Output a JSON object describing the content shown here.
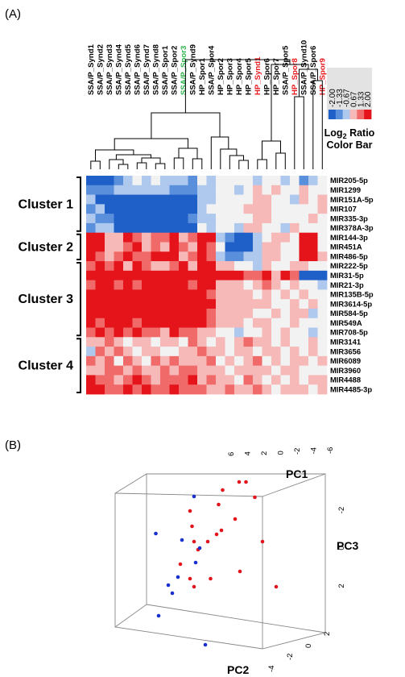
{
  "panels": {
    "a_label": "(A)",
    "b_label": "(B)"
  },
  "chart_data": [
    {
      "type": "heatmap",
      "columns": [
        {
          "name": "SSA/P_Synd1",
          "color": "#000000"
        },
        {
          "name": "SSA/P_Synd2",
          "color": "#000000"
        },
        {
          "name": "SSA/P_Synd3",
          "color": "#000000"
        },
        {
          "name": "SSA/P_Synd4",
          "color": "#000000"
        },
        {
          "name": "SSA/P_Synd5",
          "color": "#000000"
        },
        {
          "name": "SSA/P_Synd6",
          "color": "#000000"
        },
        {
          "name": "SSA/P_Synd7",
          "color": "#000000"
        },
        {
          "name": "SSA/P_Synd8",
          "color": "#000000"
        },
        {
          "name": "SSA/P_Spor1",
          "color": "#000000"
        },
        {
          "name": "SSA/P_Spor2",
          "color": "#000000"
        },
        {
          "name": "SSA/P_Spor3",
          "color": "#2db34a"
        },
        {
          "name": "SSA/P_Synd9",
          "color": "#000000"
        },
        {
          "name": "HP_Spor1",
          "color": "#000000"
        },
        {
          "name": "SSA/P_Spor4",
          "color": "#000000"
        },
        {
          "name": "HP_Spor2",
          "color": "#000000"
        },
        {
          "name": "HP_Spor3",
          "color": "#000000"
        },
        {
          "name": "HP_Spor4",
          "color": "#000000"
        },
        {
          "name": "HP_Spor5",
          "color": "#000000"
        },
        {
          "name": "HP_Synd1",
          "color": "#e8181c"
        },
        {
          "name": "HP_Spor6",
          "color": "#000000"
        },
        {
          "name": "HP_Spor7",
          "color": "#000000"
        },
        {
          "name": "SSA/P_Spor5",
          "color": "#000000"
        },
        {
          "name": "HP_Spor8",
          "color": "#e8181c"
        },
        {
          "name": "SSA/P_Synd10",
          "color": "#000000"
        },
        {
          "name": "SSA/P_Spor6",
          "color": "#000000"
        },
        {
          "name": "HP_Spor9",
          "color": "#e8181c"
        }
      ],
      "rows": [
        "MIR205-5p",
        "MIR1299",
        "MIR151A-5p",
        "MIR107",
        "MIR335-3p",
        "MIR378A-3p",
        "MIR144-3p",
        "MIR451A",
        "MIR486-5p",
        "MIR222-5p",
        "MIR31-5p",
        "MIR21-3p",
        "MIR135B-5p",
        "MIR3614-5p",
        "MIR584-5p",
        "MIR549A",
        "MIR708-5p",
        "MIR3141",
        "MIR3656",
        "MIR6089",
        "MIR3960",
        "MIR4488",
        "MIR4485-3p"
      ],
      "clusters": [
        {
          "label": "Cluster 1",
          "row_start": 0,
          "row_end": 5
        },
        {
          "label": "Cluster 2",
          "row_start": 6,
          "row_end": 8
        },
        {
          "label": "Cluster 3",
          "row_start": 9,
          "row_end": 16
        },
        {
          "label": "Cluster 4",
          "row_start": 17,
          "row_end": 22
        }
      ],
      "values": [
        [
          -2,
          -2,
          -2,
          -1.33,
          -0.67,
          0,
          -0.67,
          0,
          -0.67,
          -0.67,
          -0.67,
          -1.33,
          0,
          -0.67,
          0,
          0,
          0,
          0,
          -0.67,
          0,
          0,
          -0.67,
          0,
          -1.33,
          -0.67,
          0
        ],
        [
          -1.33,
          -1.33,
          -1.33,
          -0.67,
          -0.67,
          -0.67,
          -0.67,
          -0.67,
          -0.67,
          -1.33,
          -1.33,
          -1.33,
          -0.67,
          -0.67,
          0,
          0,
          -0.67,
          0,
          0.67,
          0,
          0.67,
          0,
          0,
          0.67,
          0,
          0
        ],
        [
          -0.67,
          -2,
          -2,
          -2,
          -2,
          -2,
          -2,
          -2,
          -2,
          -2,
          -2,
          -2,
          -0.67,
          -0.67,
          0,
          0,
          0,
          0,
          0.67,
          0.67,
          0,
          0,
          -0.67,
          0.67,
          0,
          0.67
        ],
        [
          -1.33,
          -0.67,
          -2,
          -2,
          -2,
          -2,
          -2,
          -2,
          -2,
          -2,
          -2,
          -2,
          -0.67,
          0,
          0,
          0,
          0,
          0.67,
          0.67,
          0.67,
          0,
          0,
          0,
          0,
          0,
          0.67
        ],
        [
          -0.67,
          -1.33,
          -1.33,
          -2,
          -2,
          -2,
          -2,
          -2,
          -2,
          -2,
          -2,
          -1.33,
          -0.67,
          -0.67,
          0,
          0,
          0,
          0,
          0.67,
          0.67,
          0,
          0,
          0,
          0,
          0.67,
          0
        ],
        [
          -1.33,
          -0.67,
          -0.67,
          -2,
          -2,
          -2,
          -2,
          -2,
          -2,
          -2,
          -2,
          -2,
          0,
          -0.67,
          0,
          0,
          -0.67,
          0.67,
          0.67,
          0,
          0,
          -0.67,
          0.67,
          0,
          0,
          0
        ],
        [
          2,
          2,
          0.67,
          0.67,
          2,
          1.33,
          0.67,
          1.33,
          1.33,
          2,
          0.67,
          1.33,
          2,
          2,
          -0.67,
          -1.33,
          -2,
          -2,
          -0.67,
          0,
          0.67,
          0.67,
          0,
          2,
          2,
          0
        ],
        [
          2,
          2,
          0.67,
          0.67,
          1.33,
          2,
          0.67,
          1.33,
          0.67,
          2,
          1.33,
          0.67,
          2,
          1.33,
          0,
          -2,
          -2,
          -2,
          -0.67,
          0.67,
          0.67,
          0,
          0,
          2,
          2,
          0
        ],
        [
          2,
          1.33,
          0.67,
          1.33,
          2,
          1.33,
          1.33,
          2,
          2,
          2,
          0.67,
          1.33,
          2,
          1.33,
          -0.67,
          -1.33,
          -1.33,
          -0.67,
          -0.67,
          0.67,
          0.67,
          0,
          0,
          2,
          2,
          0.67
        ],
        [
          1.33,
          2,
          1.33,
          2,
          0.67,
          2,
          1.33,
          0.67,
          0.67,
          1.33,
          2,
          0.67,
          2,
          2,
          0.67,
          0.67,
          0,
          0,
          -0.67,
          0.67,
          0,
          0,
          0.67,
          0.67,
          0,
          0
        ],
        [
          2,
          2,
          2,
          2,
          2,
          2,
          2,
          2,
          2,
          2,
          2,
          2,
          2,
          2,
          2,
          2,
          2,
          1.33,
          1.33,
          2,
          0.67,
          2,
          1.33,
          -2,
          -2,
          -2
        ],
        [
          1.33,
          2,
          2,
          1.33,
          2,
          1.33,
          2,
          2,
          2,
          2,
          2,
          1.33,
          2,
          2,
          0.67,
          0.67,
          0.67,
          0,
          0.67,
          1.33,
          0.67,
          0,
          0.67,
          0,
          0,
          -0.67
        ],
        [
          2,
          2,
          2,
          2,
          2,
          2,
          2,
          2,
          2,
          2,
          2,
          2,
          2,
          1.33,
          0.67,
          0.67,
          0.67,
          0.67,
          0,
          0.67,
          0,
          0.67,
          0,
          0.67,
          0,
          0
        ],
        [
          2,
          2,
          2,
          2,
          2,
          2,
          2,
          2,
          2,
          2,
          2,
          2,
          2,
          2,
          0.67,
          0.67,
          0.67,
          0.67,
          0.67,
          0.67,
          0,
          0,
          0.67,
          0,
          0.67,
          0
        ],
        [
          2,
          2,
          2,
          2,
          2,
          2,
          2,
          2,
          2,
          2,
          2,
          2,
          2,
          1.33,
          0.67,
          0.67,
          0.67,
          0.67,
          0,
          0,
          0.67,
          0,
          0.67,
          0.67,
          -0.67,
          0
        ],
        [
          2,
          1.33,
          2,
          2,
          2,
          1.33,
          2,
          2,
          2,
          2,
          2,
          2,
          2,
          1.33,
          0.67,
          0.67,
          0.67,
          0,
          0.67,
          0.67,
          0,
          0,
          0.67,
          0,
          0,
          0
        ],
        [
          1.33,
          2,
          1.33,
          2,
          1.33,
          2,
          1.33,
          1.33,
          0.67,
          2,
          1.33,
          1.33,
          0.67,
          0.67,
          0,
          0,
          -0.67,
          0,
          0,
          0.67,
          0,
          0.67,
          0,
          0,
          -0.67,
          0
        ],
        [
          0.67,
          0.67,
          1.33,
          0.67,
          0,
          0.67,
          0.67,
          0,
          0.67,
          0.67,
          0,
          1.33,
          0.67,
          0,
          0.67,
          0,
          0.67,
          1.33,
          0.67,
          0.67,
          0,
          0.67,
          0,
          0,
          0.67,
          0
        ],
        [
          -0.67,
          1.33,
          0.67,
          1.33,
          0.67,
          0,
          0.67,
          0.67,
          0,
          0,
          0.67,
          0.67,
          1.33,
          0.67,
          0.67,
          0,
          0.67,
          0.67,
          0,
          0.67,
          0.67,
          0,
          0.67,
          0,
          0.67,
          0
        ],
        [
          1.33,
          0.67,
          1.33,
          0,
          1.33,
          0.67,
          0,
          1.33,
          0.67,
          1.33,
          0.67,
          0.67,
          0.67,
          1.33,
          0,
          0.67,
          0,
          0.67,
          1.33,
          0,
          0.67,
          0,
          0.67,
          0.67,
          0,
          0.67
        ],
        [
          0.67,
          0.67,
          1.33,
          1.33,
          0.67,
          1.33,
          0.67,
          0.67,
          1.33,
          0.67,
          1.33,
          1.33,
          0.67,
          0.67,
          0.67,
          0,
          0.67,
          0.67,
          0.67,
          0.67,
          0,
          0.67,
          0.67,
          0,
          0,
          0
        ],
        [
          2,
          1.33,
          1.33,
          0.67,
          1.33,
          2,
          1.33,
          0.67,
          1.33,
          1.33,
          1.33,
          2,
          0.67,
          1.33,
          0.67,
          0.67,
          0,
          1.33,
          0.67,
          0,
          0.67,
          0,
          0.67,
          0,
          0.67,
          0.67
        ],
        [
          2,
          2,
          1.33,
          1.33,
          2,
          1.33,
          2,
          1.33,
          1.33,
          2,
          1.33,
          1.33,
          1.33,
          0.67,
          0.67,
          1.33,
          0.67,
          0.67,
          1.33,
          0.67,
          0,
          0.67,
          0.67,
          0.67,
          0,
          0.67
        ]
      ],
      "color_scale": {
        "ticks": [
          "-2.00",
          "-1.33",
          "-0.67",
          "0.67",
          "1.33",
          "2.00"
        ],
        "stops": [
          {
            "value": -2,
            "color": "#1f5fc8"
          },
          {
            "value": -1.33,
            "color": "#5a8fdc"
          },
          {
            "value": -0.67,
            "color": "#aec8ee"
          },
          {
            "value": 0,
            "color": "#f2f2f2"
          },
          {
            "value": 0.67,
            "color": "#f7b8b8"
          },
          {
            "value": 1.33,
            "color": "#f06a6a"
          },
          {
            "value": 2,
            "color": "#e4141a"
          }
        ],
        "title_line1": "Log",
        "title_sub": "2",
        "title_line1_rest": " Ratio",
        "title_line2": "Color Bar"
      }
    },
    {
      "type": "scatter3d",
      "axes": {
        "x": {
          "label": "PC1",
          "range": [
            -6,
            6
          ],
          "ticks": [
            "6",
            "4",
            "2",
            "0",
            "-2",
            "-4",
            "-6"
          ]
        },
        "y": {
          "label": "PC2",
          "range": [
            -4,
            4
          ],
          "ticks": [
            "-4",
            "-2",
            "0",
            "2"
          ]
        },
        "z": {
          "label": "PC3",
          "range": [
            -4,
            4
          ],
          "ticks": [
            "-2",
            "0",
            "2"
          ]
        }
      },
      "series": [
        {
          "color": "#e3151c",
          "points": [
            [
              -4.5,
              -2.5,
              1
            ],
            [
              -3,
              -2,
              2
            ],
            [
              -2.5,
              -3,
              1
            ],
            [
              -1.5,
              -2,
              1
            ],
            [
              -1,
              -1.5,
              0
            ],
            [
              0,
              -2,
              -1
            ],
            [
              1,
              -1,
              0
            ],
            [
              2,
              -1,
              -1
            ],
            [
              -2,
              -1,
              1
            ],
            [
              -4,
              -1,
              0
            ],
            [
              -3.5,
              -2,
              2
            ],
            [
              -1,
              -1,
              0.5
            ],
            [
              0,
              -1,
              0
            ],
            [
              1.5,
              -0.5,
              1
            ],
            [
              2,
              0,
              2
            ],
            [
              -5,
              -1,
              -2
            ],
            [
              -2,
              -0.5,
              -1
            ],
            [
              0.5,
              0,
              -1
            ],
            [
              1,
              -1,
              -2
            ],
            [
              2,
              0,
              -1
            ]
          ]
        },
        {
          "color": "#1a2fcf",
          "points": [
            [
              4,
              1,
              -1
            ],
            [
              5,
              1,
              -2
            ],
            [
              3,
              2,
              1
            ],
            [
              4,
              2,
              2
            ],
            [
              5,
              2,
              0
            ],
            [
              4.5,
              0,
              1
            ],
            [
              3,
              3,
              -2
            ],
            [
              2,
              1,
              1
            ],
            [
              5,
              3,
              1
            ],
            [
              1,
              -1,
              2
            ]
          ]
        }
      ]
    }
  ]
}
